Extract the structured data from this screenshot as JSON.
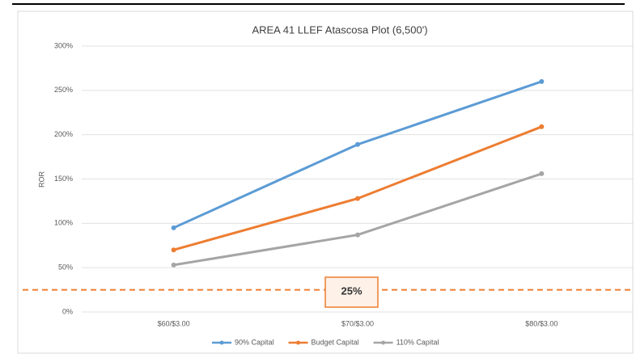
{
  "chart_data": {
    "type": "line",
    "title": "AREA 41 LLEF Atascosa Plot (6,500')",
    "y_label": "ROR",
    "categories": [
      "$60/$3.00",
      "$70/$3.00",
      "$80/$3.00"
    ],
    "series": [
      {
        "name": "90% Capital",
        "color": "#5b9bd5",
        "values": [
          95,
          189,
          260
        ]
      },
      {
        "name": "Budget Capital",
        "color": "#ed7d31",
        "values": [
          70,
          128,
          209
        ]
      },
      {
        "name": "110% Capital",
        "color": "#a5a5a5",
        "values": [
          53,
          87,
          156
        ]
      }
    ],
    "ylim": [
      0,
      300
    ],
    "yticks": [
      {
        "value": 0,
        "label": "0%"
      },
      {
        "value": 50,
        "label": "50%"
      },
      {
        "value": 100,
        "label": "100%"
      },
      {
        "value": 150,
        "label": "150%"
      },
      {
        "value": 200,
        "label": "200%"
      },
      {
        "value": 250,
        "label": "250%"
      },
      {
        "value": 300,
        "label": "300%"
      }
    ],
    "threshold": {
      "value": 25,
      "label": "25%",
      "color": "#ed7d31"
    },
    "legend": "bottom"
  }
}
